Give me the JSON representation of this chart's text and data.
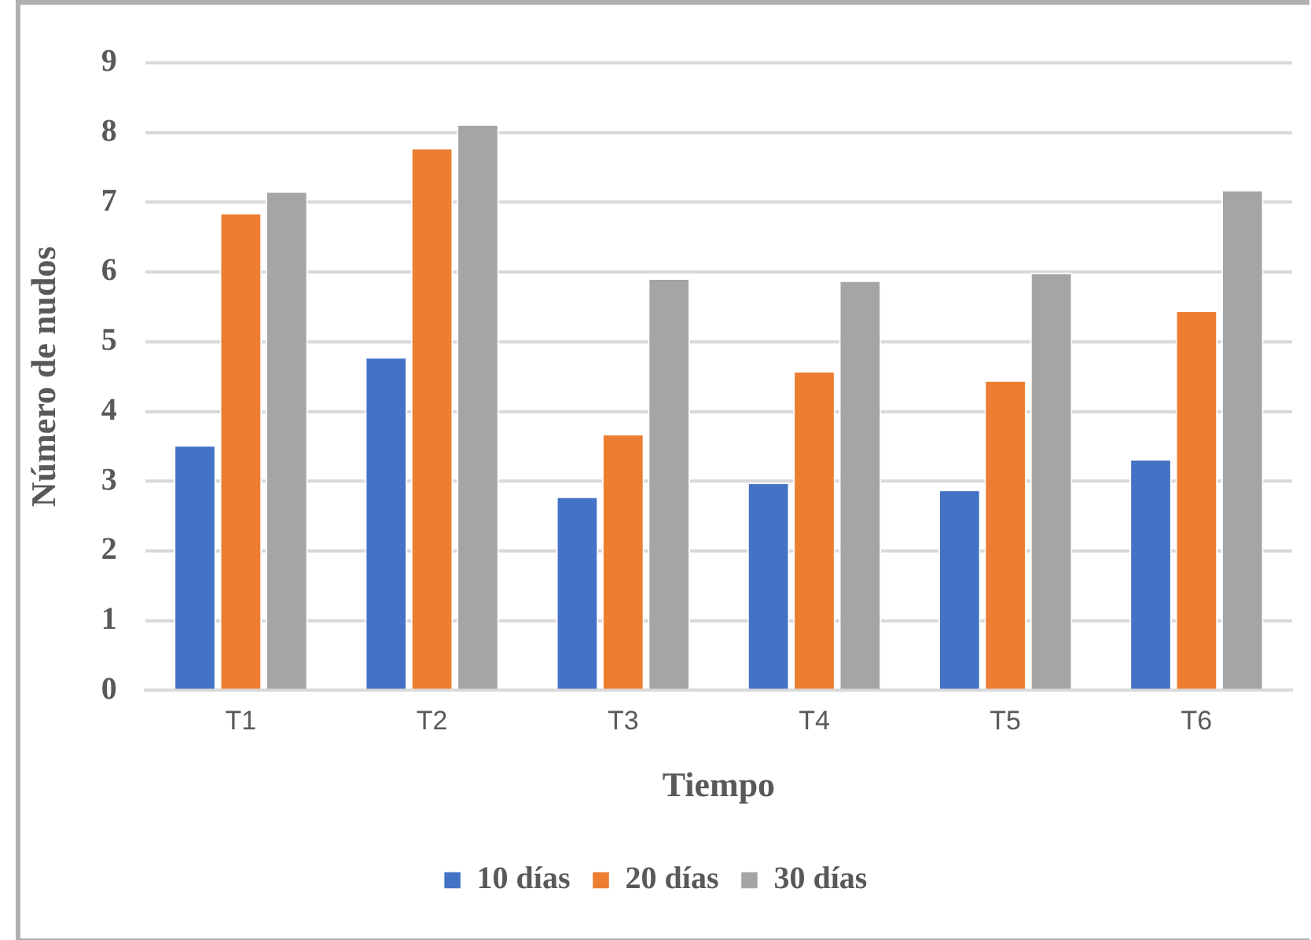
{
  "chart_data": {
    "type": "bar",
    "xlabel": "Tiempo",
    "ylabel": "Número de nudos",
    "categories": [
      "T1",
      "T2",
      "T3",
      "T4",
      "T5",
      "T6"
    ],
    "series": [
      {
        "name": "10 días",
        "color": "#4472c4",
        "values": [
          3.52,
          4.78,
          2.78,
          2.98,
          2.88,
          3.32
        ]
      },
      {
        "name": "20 días",
        "color": "#ed7d31",
        "values": [
          6.85,
          7.78,
          3.68,
          4.58,
          4.45,
          5.45
        ]
      },
      {
        "name": "30 días",
        "color": "#a5a5a5",
        "values": [
          7.16,
          8.12,
          5.91,
          5.88,
          5.99,
          7.18
        ]
      }
    ],
    "ylim": [
      0,
      9
    ],
    "yticks": [
      0,
      1,
      2,
      3,
      4,
      5,
      6,
      7,
      8,
      9
    ],
    "grid": "y",
    "legend": "bottom"
  }
}
